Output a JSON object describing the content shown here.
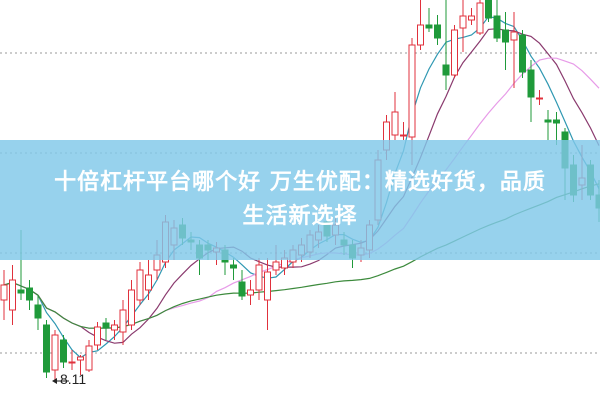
{
  "chart_data": {
    "type": "candlestick",
    "title": "",
    "xlabel": "",
    "ylabel": "",
    "ylim": [
      7.91,
      11.91
    ],
    "grid": "dotted horizontal",
    "up_color": "#e0313c",
    "down_color": "#1f9a3a",
    "low_marker": {
      "label": "8.11",
      "value": 8.11,
      "index": 6
    },
    "moving_averages": [
      {
        "period": 5,
        "color": "#2f98b2"
      },
      {
        "period": 10,
        "color": "#8a3a6e"
      },
      {
        "period": 20,
        "color": "#e79be8"
      },
      {
        "period": 60,
        "color": "#3c8a3c"
      }
    ],
    "ohlc": [
      [
        8.91,
        9.06,
        9.21,
        8.71
      ],
      [
        8.81,
        9.11,
        9.26,
        8.66
      ],
      [
        9.01,
        8.98,
        9.61,
        8.91
      ],
      [
        9.03,
        8.91,
        9.11,
        8.81
      ],
      [
        8.86,
        8.73,
        8.96,
        8.61
      ],
      [
        8.66,
        8.19,
        8.71,
        8.13
      ],
      [
        8.21,
        8.56,
        8.61,
        8.11
      ],
      [
        8.51,
        8.29,
        8.56,
        8.23
      ],
      [
        8.29,
        8.29,
        8.41,
        8.21
      ],
      [
        8.31,
        8.34,
        8.36,
        8.16
      ],
      [
        8.21,
        8.45,
        8.51,
        8.19
      ],
      [
        8.46,
        8.64,
        8.69,
        8.41
      ],
      [
        8.68,
        8.63,
        8.73,
        8.51
      ],
      [
        8.61,
        8.66,
        8.71,
        8.51
      ],
      [
        8.59,
        8.81,
        8.91,
        8.46
      ],
      [
        8.66,
        9.01,
        9.11,
        8.61
      ],
      [
        8.91,
        9.21,
        9.29,
        8.86
      ],
      [
        9.01,
        9.16,
        9.31,
        8.91
      ],
      [
        9.21,
        9.36,
        9.51,
        9.11
      ],
      [
        9.29,
        9.69,
        9.76,
        9.23
      ],
      [
        9.46,
        9.63,
        9.71,
        9.31
      ],
      [
        9.66,
        9.53,
        9.73,
        9.46
      ],
      [
        9.51,
        9.49,
        9.59,
        9.41
      ],
      [
        9.46,
        9.33,
        9.51,
        9.16
      ],
      [
        9.46,
        9.41,
        9.51,
        9.31
      ],
      [
        9.39,
        9.43,
        9.49,
        9.26
      ],
      [
        9.41,
        9.29,
        9.46,
        9.16
      ],
      [
        9.26,
        9.23,
        9.33,
        9.11
      ],
      [
        9.09,
        8.95,
        9.21,
        8.91
      ],
      [
        8.96,
        9.01,
        9.11,
        8.86
      ],
      [
        9.01,
        9.26,
        9.33,
        8.91
      ],
      [
        8.91,
        9.19,
        9.33,
        8.61
      ],
      [
        9.21,
        9.29,
        9.46,
        9.16
      ],
      [
        9.23,
        9.33,
        9.41,
        9.16
      ],
      [
        9.29,
        9.41,
        9.46,
        9.23
      ],
      [
        9.36,
        9.46,
        9.53,
        9.29
      ],
      [
        9.39,
        9.56,
        9.61,
        9.33
      ],
      [
        9.51,
        9.59,
        9.66,
        9.43
      ],
      [
        9.69,
        9.55,
        9.76,
        9.49
      ],
      [
        9.56,
        9.66,
        9.73,
        9.46
      ],
      [
        9.51,
        9.46,
        9.59,
        9.36
      ],
      [
        9.46,
        9.33,
        9.51,
        9.23
      ],
      [
        9.36,
        9.43,
        9.51,
        9.29
      ],
      [
        9.41,
        9.66,
        9.71,
        9.33
      ],
      [
        9.71,
        10.31,
        10.41,
        9.66
      ],
      [
        10.41,
        10.69,
        10.76,
        10.31
      ],
      [
        10.56,
        10.79,
        10.99,
        10.51
      ],
      [
        10.56,
        10.56,
        10.69,
        10.51
      ],
      [
        10.54,
        11.46,
        11.53,
        10.26
      ],
      [
        11.46,
        11.66,
        11.91,
        11.41
      ],
      [
        11.66,
        11.63,
        11.83,
        11.59
      ],
      [
        11.66,
        11.53,
        11.76,
        11.46
      ],
      [
        11.26,
        11.16,
        11.91,
        11.01
      ],
      [
        11.16,
        11.61,
        11.66,
        11.13
      ],
      [
        11.63,
        11.75,
        11.91,
        11.39
      ],
      [
        11.71,
        11.75,
        11.83,
        11.66
      ],
      [
        11.58,
        11.88,
        11.91,
        11.56
      ],
      [
        11.91,
        11.73,
        11.91,
        11.69
      ],
      [
        11.75,
        11.53,
        11.91,
        11.49
      ],
      [
        11.61,
        11.49,
        11.79,
        11.21
      ],
      [
        11.51,
        11.59,
        11.79,
        11.03
      ],
      [
        11.56,
        11.19,
        11.61,
        11.13
      ],
      [
        11.21,
        10.94,
        11.31,
        10.69
      ],
      [
        10.93,
        10.93,
        11.01,
        10.86
      ],
      [
        10.71,
        10.69,
        10.81,
        10.51
      ],
      [
        10.71,
        10.68,
        10.79,
        10.46
      ],
      [
        10.59,
        10.23,
        10.63,
        9.91
      ],
      [
        10.26,
        9.96,
        10.36,
        9.89
      ],
      [
        10.06,
        10.13,
        10.46,
        9.91
      ],
      [
        10.26,
        9.96,
        10.31,
        9.91
      ],
      [
        9.96,
        9.83,
        10.11,
        9.69
      ]
    ]
  },
  "banner": {
    "line1": "十倍杠杆平台哪个好 万生优配：精选好货，品质",
    "line2": "生活新选择",
    "color": "#80c8e9"
  }
}
